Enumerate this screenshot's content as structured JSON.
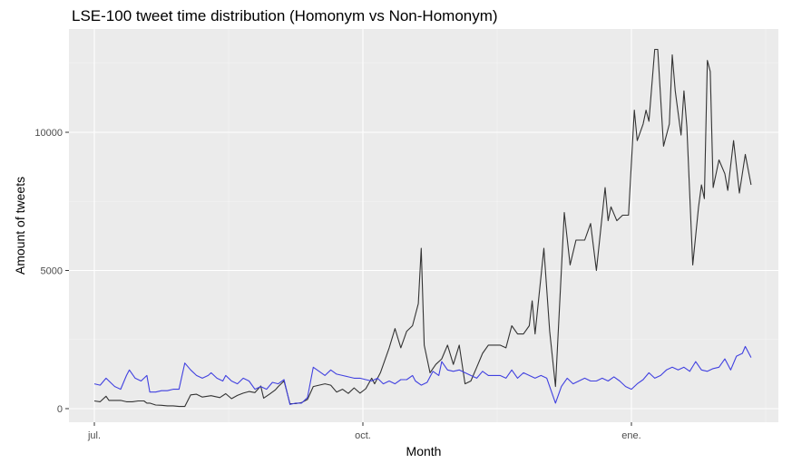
{
  "chart_data": {
    "type": "line",
    "title": "LSE-100 tweet time distribution (Homonym vs Non-Homonym)",
    "xlabel": "Month",
    "ylabel": "Amount of tweets",
    "x_ticks": [
      "jul.",
      "oct.",
      "ene."
    ],
    "y_ticks": [
      0,
      5000,
      10000
    ],
    "ylim": [
      -500,
      13700
    ],
    "grid": true,
    "legend": "none",
    "series": [
      {
        "color": "#333333",
        "points": [
          [
            0,
            280
          ],
          [
            2,
            250
          ],
          [
            4,
            450
          ],
          [
            5,
            300
          ],
          [
            7,
            300
          ],
          [
            9,
            300
          ],
          [
            11,
            250
          ],
          [
            13,
            250
          ],
          [
            15,
            280
          ],
          [
            17,
            280
          ],
          [
            18,
            200
          ],
          [
            19,
            200
          ],
          [
            21,
            130
          ],
          [
            23,
            120
          ],
          [
            25,
            100
          ],
          [
            27,
            100
          ],
          [
            29,
            80
          ],
          [
            31,
            80
          ],
          [
            33,
            500
          ],
          [
            35,
            520
          ],
          [
            37,
            420
          ],
          [
            40,
            470
          ],
          [
            43,
            400
          ],
          [
            45,
            540
          ],
          [
            47,
            360
          ],
          [
            49,
            480
          ],
          [
            51,
            560
          ],
          [
            53,
            620
          ],
          [
            55,
            580
          ],
          [
            57,
            820
          ],
          [
            58,
            380
          ],
          [
            60,
            520
          ],
          [
            62,
            680
          ],
          [
            63,
            800
          ],
          [
            65,
            1000
          ],
          [
            67,
            180
          ],
          [
            69,
            180
          ],
          [
            71,
            220
          ],
          [
            73,
            330
          ],
          [
            75,
            800
          ],
          [
            77,
            850
          ],
          [
            79,
            900
          ],
          [
            81,
            850
          ],
          [
            83,
            600
          ],
          [
            85,
            700
          ],
          [
            87,
            550
          ],
          [
            89,
            750
          ],
          [
            91,
            560
          ],
          [
            93,
            720
          ],
          [
            95,
            1100
          ],
          [
            96,
            900
          ],
          [
            98,
            1300
          ],
          [
            101,
            2200
          ],
          [
            103,
            2900
          ],
          [
            105,
            2200
          ],
          [
            107,
            2800
          ],
          [
            109,
            3000
          ],
          [
            111,
            3800
          ],
          [
            112,
            5800
          ],
          [
            113,
            2300
          ],
          [
            115,
            1300
          ],
          [
            117,
            1600
          ],
          [
            119,
            1800
          ],
          [
            121,
            2300
          ],
          [
            123,
            1600
          ],
          [
            125,
            2300
          ],
          [
            127,
            900
          ],
          [
            129,
            1000
          ],
          [
            131,
            1500
          ],
          [
            133,
            2000
          ],
          [
            135,
            2300
          ],
          [
            137,
            2300
          ],
          [
            139,
            2300
          ],
          [
            141,
            2200
          ],
          [
            143,
            3000
          ],
          [
            145,
            2700
          ],
          [
            147,
            2700
          ],
          [
            149,
            3000
          ],
          [
            150,
            3900
          ],
          [
            151,
            2700
          ],
          [
            154,
            5800
          ],
          [
            156,
            2800
          ],
          [
            158,
            800
          ],
          [
            161,
            7100
          ],
          [
            163,
            5200
          ],
          [
            165,
            6100
          ],
          [
            168,
            6100
          ],
          [
            170,
            6700
          ],
          [
            172,
            5000
          ],
          [
            175,
            8000
          ],
          [
            176,
            6800
          ],
          [
            177,
            7300
          ],
          [
            179,
            6800
          ],
          [
            181,
            7000
          ],
          [
            183,
            7000
          ],
          [
            185,
            10800
          ],
          [
            186,
            9700
          ],
          [
            188,
            10300
          ],
          [
            189,
            10800
          ],
          [
            190,
            10400
          ],
          [
            192,
            13000
          ],
          [
            193,
            13000
          ],
          [
            195,
            9500
          ],
          [
            197,
            10300
          ],
          [
            198,
            12800
          ],
          [
            199,
            11500
          ],
          [
            201,
            9900
          ],
          [
            202,
            11500
          ],
          [
            203,
            10200
          ],
          [
            205,
            5200
          ],
          [
            207,
            7300
          ],
          [
            208,
            8100
          ],
          [
            209,
            7600
          ],
          [
            210,
            12600
          ],
          [
            211,
            12200
          ],
          [
            212,
            8000
          ],
          [
            214,
            9000
          ],
          [
            216,
            8500
          ],
          [
            217,
            7900
          ],
          [
            219,
            9700
          ],
          [
            221,
            7800
          ],
          [
            223,
            9200
          ],
          [
            225,
            8100
          ]
        ]
      },
      {
        "color": "#4040e0",
        "points": [
          [
            0,
            900
          ],
          [
            2,
            850
          ],
          [
            4,
            1100
          ],
          [
            5,
            1000
          ],
          [
            7,
            800
          ],
          [
            9,
            700
          ],
          [
            11,
            1200
          ],
          [
            12,
            1400
          ],
          [
            14,
            1100
          ],
          [
            16,
            1000
          ],
          [
            18,
            1200
          ],
          [
            19,
            600
          ],
          [
            21,
            600
          ],
          [
            23,
            650
          ],
          [
            25,
            650
          ],
          [
            27,
            700
          ],
          [
            29,
            700
          ],
          [
            31,
            1650
          ],
          [
            33,
            1400
          ],
          [
            35,
            1200
          ],
          [
            37,
            1100
          ],
          [
            39,
            1200
          ],
          [
            40,
            1300
          ],
          [
            42,
            1100
          ],
          [
            44,
            1000
          ],
          [
            45,
            1200
          ],
          [
            47,
            1000
          ],
          [
            49,
            900
          ],
          [
            51,
            1100
          ],
          [
            53,
            1000
          ],
          [
            55,
            700
          ],
          [
            57,
            800
          ],
          [
            59,
            700
          ],
          [
            61,
            950
          ],
          [
            63,
            900
          ],
          [
            65,
            1050
          ],
          [
            67,
            150
          ],
          [
            69,
            200
          ],
          [
            71,
            200
          ],
          [
            73,
            400
          ],
          [
            75,
            1500
          ],
          [
            77,
            1350
          ],
          [
            79,
            1200
          ],
          [
            81,
            1400
          ],
          [
            83,
            1250
          ],
          [
            85,
            1200
          ],
          [
            87,
            1150
          ],
          [
            89,
            1100
          ],
          [
            91,
            1100
          ],
          [
            93,
            1050
          ],
          [
            95,
            1000
          ],
          [
            97,
            1100
          ],
          [
            99,
            900
          ],
          [
            101,
            1000
          ],
          [
            103,
            900
          ],
          [
            105,
            1050
          ],
          [
            107,
            1050
          ],
          [
            109,
            1200
          ],
          [
            110,
            1000
          ],
          [
            112,
            850
          ],
          [
            114,
            950
          ],
          [
            116,
            1350
          ],
          [
            118,
            1200
          ],
          [
            119,
            1700
          ],
          [
            121,
            1400
          ],
          [
            123,
            1350
          ],
          [
            125,
            1400
          ],
          [
            127,
            1300
          ],
          [
            129,
            1200
          ],
          [
            131,
            1100
          ],
          [
            133,
            1350
          ],
          [
            135,
            1200
          ],
          [
            137,
            1200
          ],
          [
            139,
            1200
          ],
          [
            141,
            1100
          ],
          [
            143,
            1400
          ],
          [
            145,
            1100
          ],
          [
            147,
            1300
          ],
          [
            149,
            1200
          ],
          [
            151,
            1100
          ],
          [
            153,
            1200
          ],
          [
            155,
            1100
          ],
          [
            157,
            500
          ],
          [
            158,
            200
          ],
          [
            160,
            800
          ],
          [
            162,
            1100
          ],
          [
            164,
            900
          ],
          [
            166,
            1000
          ],
          [
            168,
            1100
          ],
          [
            170,
            1000
          ],
          [
            172,
            1000
          ],
          [
            174,
            1100
          ],
          [
            176,
            1000
          ],
          [
            178,
            1150
          ],
          [
            180,
            1000
          ],
          [
            182,
            800
          ],
          [
            184,
            700
          ],
          [
            186,
            900
          ],
          [
            188,
            1050
          ],
          [
            190,
            1300
          ],
          [
            192,
            1100
          ],
          [
            194,
            1200
          ],
          [
            196,
            1400
          ],
          [
            198,
            1500
          ],
          [
            200,
            1400
          ],
          [
            202,
            1500
          ],
          [
            204,
            1350
          ],
          [
            206,
            1700
          ],
          [
            208,
            1400
          ],
          [
            210,
            1350
          ],
          [
            212,
            1450
          ],
          [
            214,
            1500
          ],
          [
            216,
            1800
          ],
          [
            218,
            1400
          ],
          [
            220,
            1900
          ],
          [
            222,
            2000
          ],
          [
            223,
            2250
          ],
          [
            225,
            1850
          ]
        ]
      }
    ]
  }
}
